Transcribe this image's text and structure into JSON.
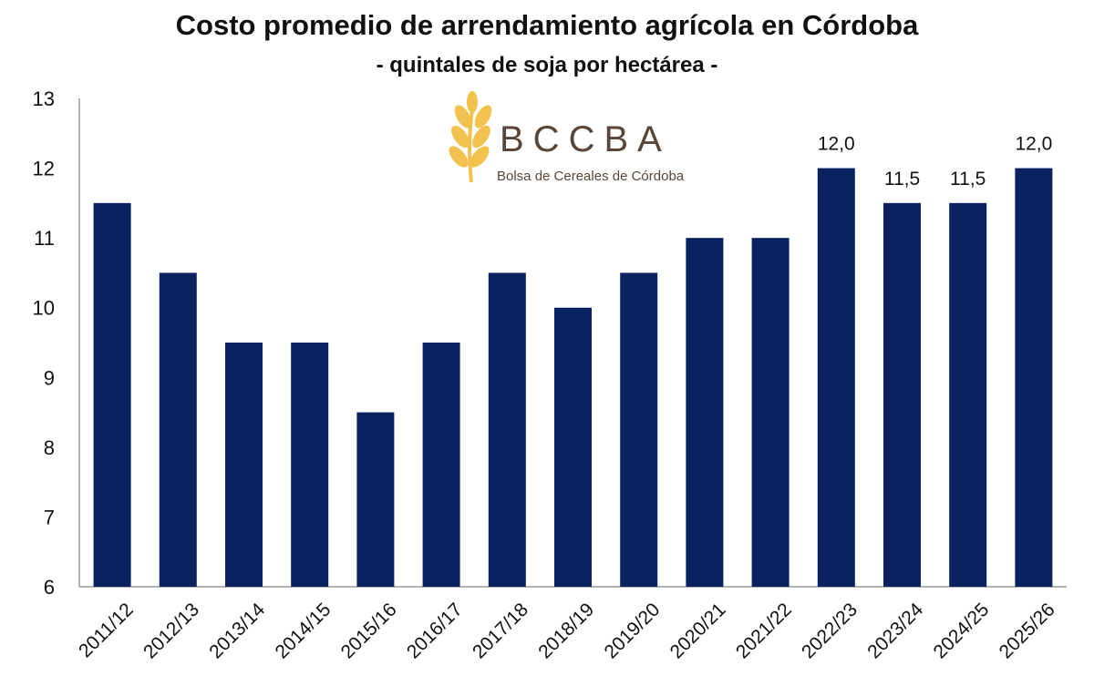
{
  "chart_data": {
    "type": "bar",
    "title": "Costo promedio de arrendamiento agrícola en Córdoba",
    "subtitle": "- quintales de soja por hectárea -",
    "xlabel": "",
    "ylabel": "",
    "ylim": [
      6,
      13
    ],
    "yticks": [
      "6",
      "7",
      "8",
      "9",
      "10",
      "11",
      "12",
      "13"
    ],
    "grid": false,
    "bar_color": "#0b2260",
    "categories": [
      "2011/12",
      "2012/13",
      "2013/14",
      "2014/15",
      "2015/16",
      "2016/17",
      "2017/18",
      "2018/19",
      "2019/20",
      "2020/21",
      "2021/22",
      "2022/23",
      "2023/24",
      "2024/25",
      "2025/26"
    ],
    "values": [
      11.5,
      10.5,
      9.5,
      9.5,
      8.5,
      9.5,
      10.5,
      10.0,
      10.5,
      11.0,
      11.0,
      12.0,
      11.5,
      11.5,
      12.0
    ],
    "data_labels": [
      "",
      "",
      "",
      "",
      "",
      "",
      "",
      "",
      "",
      "",
      "",
      "12,0",
      "11,5",
      "11,5",
      "12,0"
    ]
  },
  "logo": {
    "name": "BCCBA",
    "tagline": "Bolsa de Cereales de Córdoba",
    "color": "#5a4636",
    "wheat_color": "#f2c14e"
  }
}
